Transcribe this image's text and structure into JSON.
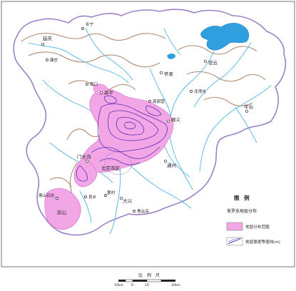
{
  "colors": {
    "background": "#ffffff",
    "boundary": "#9b82c6",
    "river": "#4fb3e6",
    "mountain": "#b08870",
    "stratum_fill": "#f2a6e6",
    "isoline": "#5a2fb4",
    "city_fill": "#f7c9ee",
    "reservoir": "#2f9fe0"
  },
  "places": [
    {
      "name": "延庆",
      "kind": "county"
    },
    {
      "name": "怀柔",
      "kind": "county"
    },
    {
      "name": "密云",
      "kind": "county"
    },
    {
      "name": "平谷",
      "kind": "county"
    },
    {
      "name": "顺义",
      "kind": "county"
    },
    {
      "name": "昌平",
      "kind": "county"
    },
    {
      "name": "门头沟",
      "kind": "county"
    },
    {
      "name": "北京市区",
      "kind": "city"
    },
    {
      "name": "通州",
      "kind": "county"
    },
    {
      "name": "良乡",
      "kind": "town"
    },
    {
      "name": "大兴",
      "kind": "county"
    },
    {
      "name": "黄村",
      "kind": "town"
    },
    {
      "name": "房山",
      "kind": "county"
    },
    {
      "name": "青云店",
      "kind": "town"
    },
    {
      "name": "燕山石化",
      "kind": "town"
    },
    {
      "name": "南口",
      "kind": "town"
    },
    {
      "name": "高丽营",
      "kind": "town"
    },
    {
      "name": "永宁",
      "kind": "town"
    },
    {
      "name": "康庄",
      "kind": "town"
    },
    {
      "name": "龙湾屯",
      "kind": "town"
    }
  ],
  "legend": {
    "title": "图 例",
    "subtitle": "侏罗系地层分布",
    "items": [
      {
        "label": "地层分布范围",
        "symbol": "fill"
      },
      {
        "label": "地层厚度等值线(m)",
        "symbol": "isoline"
      }
    ]
  },
  "scale_bar": {
    "title": "比 例 尺",
    "ticks": [
      "10km",
      "0",
      "10",
      "20km"
    ]
  }
}
